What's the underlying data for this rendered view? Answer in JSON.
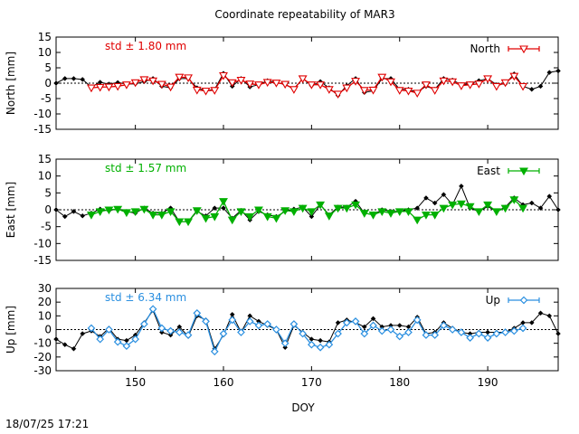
{
  "title": "Coordinate repeatability of MAR3",
  "footer_timestamp": "18/07/25 17:21",
  "xlabel": "DOY",
  "x_ticks": [
    150,
    160,
    170,
    180,
    190
  ],
  "xlim": [
    141,
    198
  ],
  "colors": {
    "black": "#000000",
    "north": "#e00000",
    "east": "#00b000",
    "up": "#2a8fe0"
  },
  "chart_data": [
    {
      "type": "line",
      "panel": "north",
      "ylabel": "North [mm]",
      "ylim": [
        -15,
        15
      ],
      "y_ticks": [
        -15,
        -10,
        -5,
        0,
        5,
        10,
        15
      ],
      "legend_label": "North",
      "legend_position": "top-right",
      "std_label": "std ± 1.80 mm",
      "series": [
        {
          "role": "all-solutions",
          "color": "#000000",
          "marker": "diamond",
          "x": [
            141,
            142,
            143,
            144,
            145,
            146,
            147,
            148,
            149,
            150,
            151,
            152,
            153,
            154,
            155,
            156,
            157,
            158,
            159,
            160,
            161,
            162,
            163,
            164,
            165,
            166,
            167,
            168,
            169,
            170,
            171,
            172,
            173,
            174,
            175,
            176,
            177,
            178,
            179,
            180,
            181,
            182,
            183,
            184,
            185,
            186,
            187,
            188,
            189,
            190,
            191,
            192,
            193,
            194,
            195,
            196,
            197,
            198
          ],
          "y": [
            0,
            1.5,
            1.5,
            1.2,
            -1.2,
            0.3,
            -0.3,
            0.2,
            -0.3,
            -0.2,
            0.5,
            1.5,
            -1.0,
            -1.5,
            1.5,
            1.5,
            -1.5,
            -2.5,
            -2.0,
            3.2,
            -1.0,
            1.5,
            -1.2,
            -0.5,
            0.8,
            0.3,
            -0.5,
            -1.8,
            1.5,
            -0.8,
            0.5,
            -1.5,
            -4.0,
            -0.8,
            1.5,
            -3.0,
            -2.5,
            1.5,
            1.5,
            -2.0,
            -2.0,
            -3.0,
            -1.0,
            -2.0,
            1.5,
            1.0,
            -0.5,
            -0.2,
            0.8,
            1.5,
            -0.5,
            -0.2,
            3.0,
            -1.0,
            -2.0,
            -1.0,
            3.5,
            4.0
          ]
        },
        {
          "role": "repeatability",
          "color": "#e00000",
          "marker": "triangle-down",
          "x": [
            145,
            146,
            147,
            148,
            149,
            150,
            151,
            152,
            153,
            154,
            155,
            156,
            157,
            158,
            159,
            160,
            161,
            162,
            163,
            164,
            165,
            166,
            167,
            168,
            169,
            170,
            171,
            172,
            173,
            174,
            175,
            176,
            177,
            178,
            179,
            180,
            181,
            182,
            183,
            184,
            185,
            186,
            187,
            188,
            189,
            190,
            191,
            192,
            193,
            194
          ],
          "y": [
            -1.5,
            -1.3,
            -1.2,
            -1.0,
            -0.5,
            0.2,
            1.2,
            0.8,
            -0.3,
            -1.2,
            2.0,
            1.8,
            -2.2,
            -2.5,
            -2.3,
            2.5,
            0.2,
            1.0,
            -0.2,
            -0.5,
            0.3,
            0.1,
            -0.3,
            -2.0,
            1.5,
            -0.5,
            -0.5,
            -2.0,
            -3.5,
            -1.5,
            0.7,
            -2.3,
            -2.2,
            2.0,
            0.5,
            -2.3,
            -2.5,
            -3.2,
            -0.5,
            -2.3,
            0.8,
            0.5,
            -0.8,
            -0.5,
            -0.2,
            1.5,
            -1.0,
            0.2,
            2.3,
            -1.0
          ]
        }
      ]
    },
    {
      "type": "line",
      "panel": "east",
      "ylabel": "East [mm]",
      "ylim": [
        -15,
        15
      ],
      "y_ticks": [
        -15,
        -10,
        -5,
        0,
        5,
        10,
        15
      ],
      "legend_label": "East",
      "legend_position": "top-right",
      "std_label": "std ± 1.57 mm",
      "series": [
        {
          "role": "all-solutions",
          "color": "#000000",
          "marker": "diamond",
          "x": [
            141,
            142,
            143,
            144,
            145,
            146,
            147,
            148,
            149,
            150,
            151,
            152,
            153,
            154,
            155,
            156,
            157,
            158,
            159,
            160,
            161,
            162,
            163,
            164,
            165,
            166,
            167,
            168,
            169,
            170,
            171,
            172,
            173,
            174,
            175,
            176,
            177,
            178,
            179,
            180,
            181,
            182,
            183,
            184,
            185,
            186,
            187,
            188,
            189,
            190,
            191,
            192,
            193,
            194,
            195,
            196,
            197,
            198
          ],
          "y": [
            0,
            -2.0,
            -0.5,
            -1.8,
            -1.0,
            0.2,
            -0.3,
            0.3,
            -0.5,
            -1.0,
            0.5,
            -1.0,
            -1.0,
            0.5,
            -3.5,
            -3.5,
            -0.5,
            -1.8,
            0.5,
            0.5,
            -2.5,
            -0.2,
            -3.0,
            -0.5,
            -1.5,
            -2.0,
            -0.5,
            0.2,
            0.8,
            -2.0,
            1.5,
            -1.5,
            0.8,
            0.8,
            2.5,
            -1.0,
            -1.5,
            0,
            -0.5,
            -0.5,
            0,
            0.5,
            3.5,
            2.0,
            4.5,
            1.5,
            7.0,
            0.5,
            -0.5,
            1.0,
            -0.5,
            0.8,
            3.5,
            1.5,
            2.0,
            0.5,
            4.0,
            0
          ]
        },
        {
          "role": "repeatability",
          "color": "#00b000",
          "marker": "triangle-down",
          "x": [
            145,
            146,
            147,
            148,
            149,
            150,
            151,
            152,
            153,
            154,
            155,
            156,
            157,
            158,
            159,
            160,
            161,
            162,
            163,
            164,
            165,
            166,
            167,
            168,
            169,
            170,
            171,
            172,
            173,
            174,
            175,
            176,
            177,
            178,
            179,
            180,
            181,
            182,
            183,
            184,
            185,
            186,
            187,
            188,
            189,
            190,
            191,
            192,
            193,
            194
          ],
          "y": [
            -1.5,
            -0.5,
            0,
            0.2,
            -0.8,
            -0.5,
            0.2,
            -1.5,
            -1.5,
            -0.5,
            -3.5,
            -3.5,
            -0.2,
            -2.5,
            -2.0,
            2.5,
            -3.0,
            -0.5,
            -2.0,
            0,
            -2.0,
            -2.5,
            -0.2,
            -0.5,
            0.5,
            -0.5,
            1.5,
            -1.8,
            0.5,
            0.5,
            1.5,
            -1.0,
            -1.5,
            -0.5,
            -1.0,
            -0.5,
            -0.5,
            -3.0,
            -1.5,
            -1.5,
            0.5,
            1.5,
            1.8,
            1.0,
            -0.5,
            1.5,
            -0.5,
            0.5,
            3.0,
            0.5
          ]
        }
      ]
    },
    {
      "type": "line",
      "panel": "up",
      "ylabel": "Up [mm]",
      "ylim": [
        -30,
        30
      ],
      "y_ticks": [
        -30,
        -20,
        -10,
        0,
        10,
        20,
        30
      ],
      "legend_label": "Up",
      "legend_position": "top-right",
      "std_label": "std ± 6.34 mm",
      "series": [
        {
          "role": "all-solutions",
          "color": "#000000",
          "marker": "diamond",
          "x": [
            141,
            142,
            143,
            144,
            145,
            146,
            147,
            148,
            149,
            150,
            151,
            152,
            153,
            154,
            155,
            156,
            157,
            158,
            159,
            160,
            161,
            162,
            163,
            164,
            165,
            166,
            167,
            168,
            169,
            170,
            171,
            172,
            173,
            174,
            175,
            176,
            177,
            178,
            179,
            180,
            181,
            182,
            183,
            184,
            185,
            186,
            187,
            188,
            189,
            190,
            191,
            192,
            193,
            194,
            195,
            196,
            197,
            198
          ],
          "y": [
            -7,
            -11,
            -14,
            -3,
            -1,
            -5,
            1,
            -7,
            -8,
            -4,
            5,
            14,
            -2,
            -4,
            2,
            -5,
            10,
            7,
            -14,
            -4,
            11,
            -2,
            10,
            6,
            3,
            0,
            -13,
            3,
            -2,
            -7,
            -8,
            -9,
            5,
            7,
            5,
            2,
            8,
            2,
            3,
            3,
            2,
            9,
            -3,
            -2,
            5,
            1,
            -2,
            -3,
            -2,
            -2,
            -2,
            -2,
            1,
            5,
            5,
            12,
            10,
            -3
          ]
        },
        {
          "role": "repeatability",
          "color": "#2a8fe0",
          "marker": "diamond-open",
          "x": [
            145,
            146,
            147,
            148,
            149,
            150,
            151,
            152,
            153,
            154,
            155,
            156,
            157,
            158,
            159,
            160,
            161,
            162,
            163,
            164,
            165,
            166,
            167,
            168,
            169,
            170,
            171,
            172,
            173,
            174,
            175,
            176,
            177,
            178,
            179,
            180,
            181,
            182,
            183,
            184,
            185,
            186,
            187,
            188,
            189,
            190,
            191,
            192,
            193,
            194
          ],
          "y": [
            1,
            -7,
            0,
            -9,
            -12,
            -7,
            4,
            15,
            1,
            -1,
            -2,
            -4,
            12,
            6,
            -16,
            -3,
            7,
            -2,
            6,
            3,
            4,
            0,
            -10,
            4,
            -3,
            -11,
            -13,
            -11,
            -3,
            5,
            6,
            -3,
            3,
            -1,
            0,
            -5,
            -2,
            7,
            -4,
            -4,
            3,
            0,
            -2,
            -6,
            -3,
            -6,
            -3,
            -2,
            -1,
            1
          ]
        }
      ]
    }
  ]
}
